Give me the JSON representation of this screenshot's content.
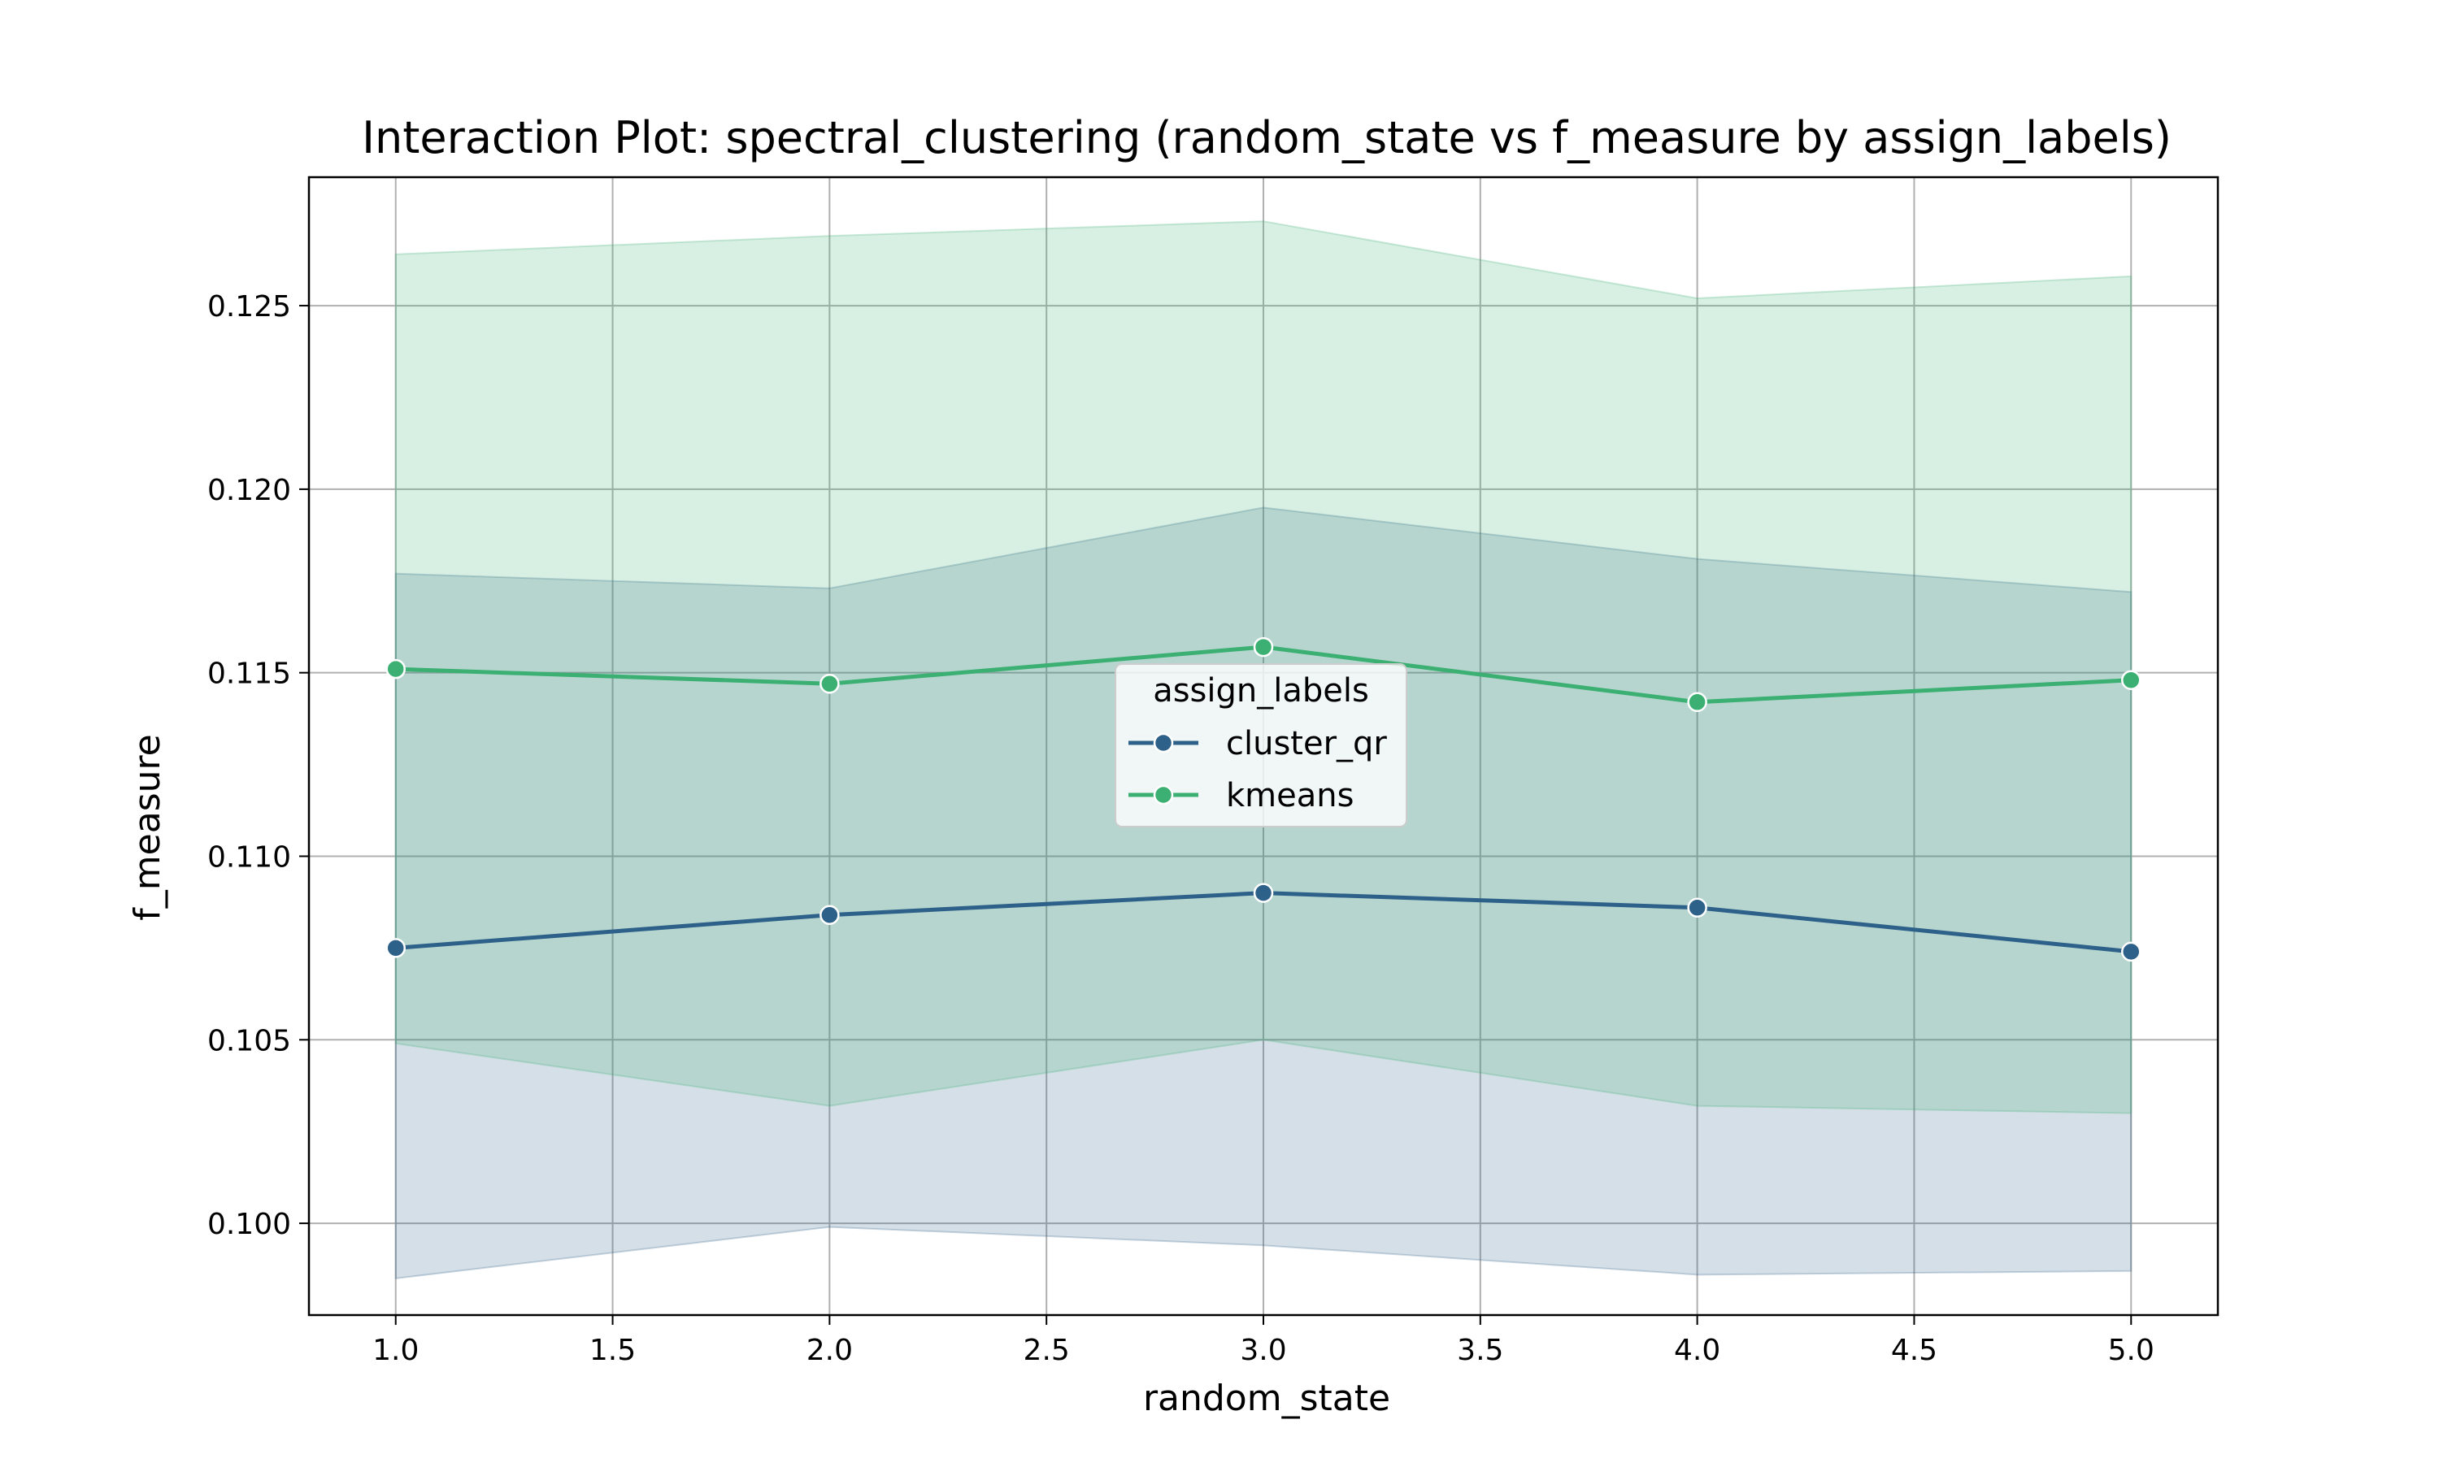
{
  "chart_data": {
    "type": "line",
    "title": "Interaction Plot: spectral_clustering (random_state vs f_measure by assign_labels)",
    "xlabel": "random_state",
    "ylabel": "f_measure",
    "xlim": [
      0.8,
      5.2
    ],
    "ylim": [
      0.0975,
      0.1285
    ],
    "xticks": [
      1.0,
      1.5,
      2.0,
      2.5,
      3.0,
      3.5,
      4.0,
      4.5,
      5.0
    ],
    "xtick_labels": [
      "1.0",
      "1.5",
      "2.0",
      "2.5",
      "3.0",
      "3.5",
      "4.0",
      "4.5",
      "5.0"
    ],
    "yticks": [
      0.1,
      0.105,
      0.11,
      0.115,
      0.12,
      0.125
    ],
    "ytick_labels": [
      "0.100",
      "0.105",
      "0.110",
      "0.115",
      "0.120",
      "0.125"
    ],
    "grid": true,
    "legend": {
      "title": "assign_labels",
      "placement": "center"
    },
    "x": [
      1,
      2,
      3,
      4,
      5
    ],
    "series": [
      {
        "name": "cluster_qr",
        "color": "#2e6189",
        "values": [
          0.1075,
          0.1084,
          0.109,
          0.1086,
          0.1074
        ],
        "ci_upper": [
          0.1177,
          0.1173,
          0.1195,
          0.1181,
          0.1172
        ],
        "ci_lower": [
          0.0985,
          0.0999,
          0.0994,
          0.0986,
          0.0987
        ]
      },
      {
        "name": "kmeans",
        "color": "#3bb072",
        "values": [
          0.1151,
          0.1147,
          0.1157,
          0.1142,
          0.1148
        ],
        "ci_upper": [
          0.1264,
          0.1269,
          0.1273,
          0.1252,
          0.1258
        ],
        "ci_lower": [
          0.1049,
          0.1032,
          0.105,
          0.1032,
          0.103
        ]
      }
    ]
  }
}
